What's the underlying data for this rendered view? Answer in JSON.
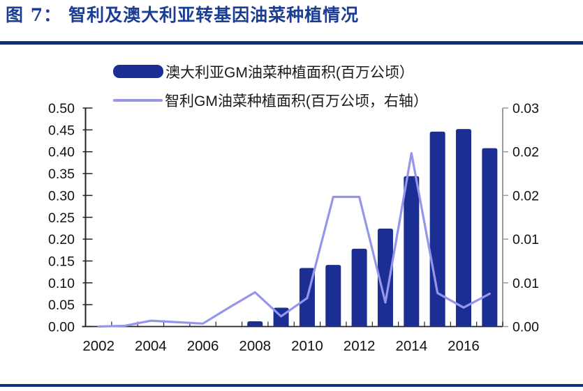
{
  "title": {
    "figure_label": "图 7：",
    "caption": "智利及澳大利亚转基因油菜种植情况"
  },
  "colors": {
    "bar": "#1B2E93",
    "line": "#9596EB",
    "title": "#1B3E94",
    "divider": "#0C2F7E",
    "axis_line": "#222222",
    "right_axis_line": "#9A9A9A",
    "axis_text": "#111111"
  },
  "legend": {
    "items": [
      {
        "label": "澳大利亚GM油菜种植面积(百万公顷）",
        "swatch": "bar"
      },
      {
        "label": "智利GM油菜种植面积(百万公顷，右轴）",
        "swatch": "line"
      }
    ]
  },
  "chart_data": {
    "type": "bar",
    "subtype": "bar+line-combo-dual-axis",
    "categories": [
      "2002",
      "2003",
      "2004",
      "2005",
      "2006",
      "2007",
      "2008",
      "2009",
      "2010",
      "2011",
      "2012",
      "2013",
      "2014",
      "2015",
      "2016",
      "2017"
    ],
    "series": [
      {
        "name": "澳大利亚GM油菜种植面积(百万公顷）",
        "type": "bar",
        "axis": "left",
        "values": [
          0,
          0,
          0,
          0,
          0,
          0,
          0.012,
          0.043,
          0.134,
          0.141,
          0.178,
          0.224,
          0.344,
          0.446,
          0.452,
          0.408
        ]
      },
      {
        "name": "智利GM油菜种植面积(百万公顷，右轴）",
        "type": "line",
        "axis": "right",
        "values": [
          0.0,
          0.0001,
          0.0008,
          0.0006,
          0.0004,
          0.0026,
          0.0047,
          0.0014,
          0.0039,
          0.0178,
          0.0178,
          0.0033,
          0.0238,
          0.0046,
          0.0026,
          0.0045
        ]
      }
    ],
    "left_axis": {
      "min": 0,
      "max": 0.5,
      "step": 0.05,
      "tick_labels": [
        "0.00",
        "0.05",
        "0.10",
        "0.15",
        "0.20",
        "0.25",
        "0.30",
        "0.35",
        "0.40",
        "0.45",
        "0.50"
      ]
    },
    "right_axis": {
      "min": 0,
      "max": 0.03,
      "step": 0.006,
      "tick_labels": [
        "0.00",
        "0.01",
        "0.01",
        "0.02",
        "0.02",
        "0.03"
      ]
    },
    "x_axis": {
      "tick_labels": [
        "2002",
        "2004",
        "2006",
        "2008",
        "2010",
        "2012",
        "2014",
        "2016"
      ],
      "label_every": 2
    },
    "grid": false,
    "legend_position": "top-center"
  }
}
